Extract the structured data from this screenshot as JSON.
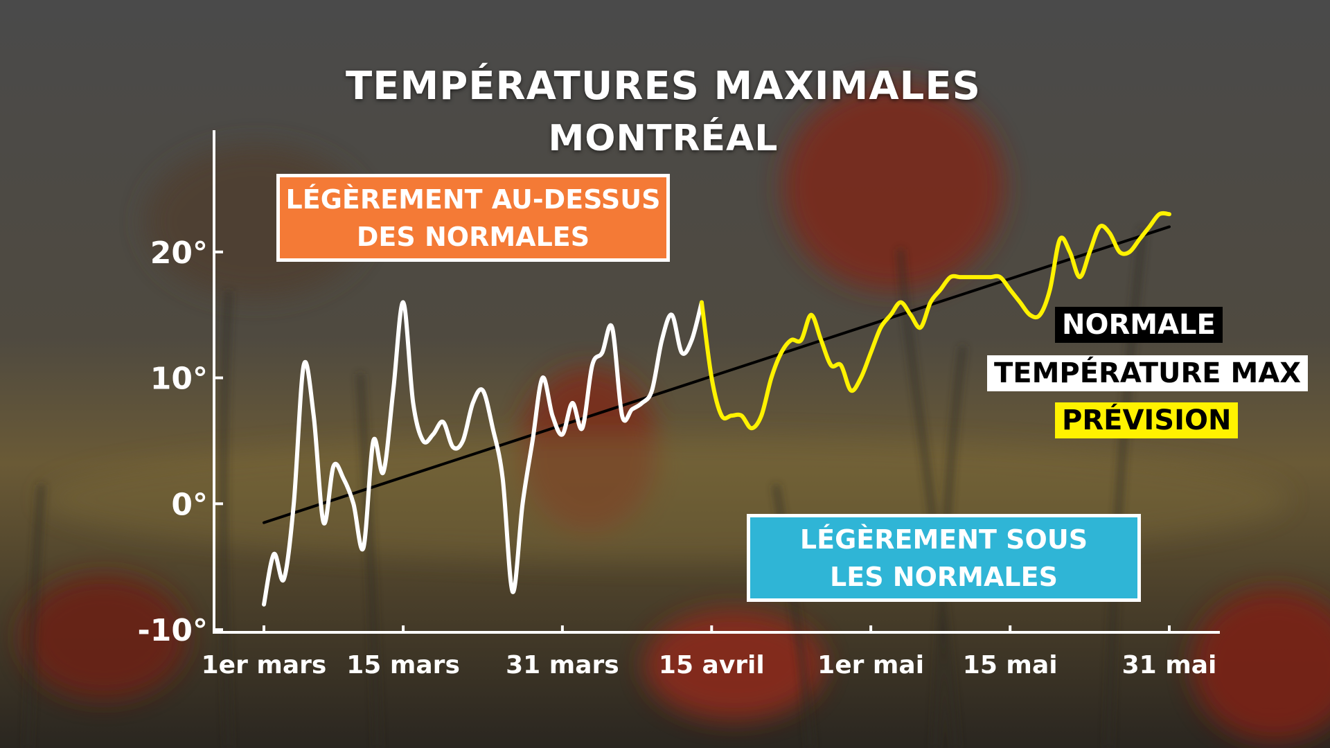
{
  "chart_data": {
    "type": "line",
    "title": "TEMPÉRATURES MAXIMALES",
    "subtitle": "MONTRÉAL",
    "xlim": [
      "2021-03-01",
      "2021-05-31"
    ],
    "ylim": [
      -15,
      30
    ],
    "yticks": [
      20,
      10,
      0,
      -10
    ],
    "ytick_labels": [
      "20°",
      "10°",
      "0°",
      "-10°"
    ],
    "xticks": [
      "2021-03-01",
      "2021-03-15",
      "2021-03-31",
      "2021-04-15",
      "2021-05-01",
      "2021-05-15",
      "2021-05-31"
    ],
    "xtick_labels": [
      "1er mars",
      "15 mars",
      "31 mars",
      "15 avril",
      "1er mai",
      "15 mai",
      "31 mai"
    ],
    "grid": false,
    "legend": "right",
    "series": [
      {
        "name": "NORMALE",
        "color": "#000000",
        "points": [
          [
            "2021-03-01",
            -1.5
          ],
          [
            "2021-05-31",
            22
          ]
        ]
      },
      {
        "name": "TEMPÉRATURE MAX",
        "color": "#ffffff",
        "points": [
          [
            "2021-03-01",
            -8
          ],
          [
            "2021-03-02",
            -4
          ],
          [
            "2021-03-03",
            -6
          ],
          [
            "2021-03-04",
            0
          ],
          [
            "2021-03-05",
            11
          ],
          [
            "2021-03-06",
            7
          ],
          [
            "2021-03-07",
            -1.5
          ],
          [
            "2021-03-08",
            3
          ],
          [
            "2021-03-09",
            2
          ],
          [
            "2021-03-10",
            0
          ],
          [
            "2021-03-11",
            -3.5
          ],
          [
            "2021-03-12",
            5
          ],
          [
            "2021-03-13",
            2.5
          ],
          [
            "2021-03-14",
            9
          ],
          [
            "2021-03-15",
            16
          ],
          [
            "2021-03-16",
            8
          ],
          [
            "2021-03-17",
            5
          ],
          [
            "2021-03-18",
            5.5
          ],
          [
            "2021-03-19",
            6.5
          ],
          [
            "2021-03-20",
            4.5
          ],
          [
            "2021-03-21",
            5
          ],
          [
            "2021-03-22",
            8
          ],
          [
            "2021-03-23",
            9
          ],
          [
            "2021-03-24",
            6
          ],
          [
            "2021-03-25",
            2
          ],
          [
            "2021-03-26",
            -7
          ],
          [
            "2021-03-27",
            0
          ],
          [
            "2021-03-28",
            5
          ],
          [
            "2021-03-29",
            10
          ],
          [
            "2021-03-30",
            7
          ],
          [
            "2021-03-31",
            5.5
          ],
          [
            "2021-04-01",
            8
          ],
          [
            "2021-04-02",
            6
          ],
          [
            "2021-04-03",
            11
          ],
          [
            "2021-04-04",
            12
          ],
          [
            "2021-04-05",
            14
          ],
          [
            "2021-04-06",
            7
          ],
          [
            "2021-04-07",
            7.5
          ],
          [
            "2021-04-08",
            8
          ],
          [
            "2021-04-09",
            9
          ],
          [
            "2021-04-10",
            13
          ],
          [
            "2021-04-11",
            15
          ],
          [
            "2021-04-12",
            12
          ],
          [
            "2021-04-13",
            13
          ],
          [
            "2021-04-14",
            16
          ]
        ]
      },
      {
        "name": "PRÉVISION",
        "color": "#fff200",
        "points": [
          [
            "2021-04-14",
            16
          ],
          [
            "2021-04-15",
            10
          ],
          [
            "2021-04-16",
            7
          ],
          [
            "2021-04-17",
            7
          ],
          [
            "2021-04-18",
            7
          ],
          [
            "2021-04-19",
            6
          ],
          [
            "2021-04-20",
            7
          ],
          [
            "2021-04-21",
            10
          ],
          [
            "2021-04-22",
            12
          ],
          [
            "2021-04-23",
            13
          ],
          [
            "2021-04-24",
            13
          ],
          [
            "2021-04-25",
            15
          ],
          [
            "2021-04-26",
            13
          ],
          [
            "2021-04-27",
            11
          ],
          [
            "2021-04-28",
            11
          ],
          [
            "2021-04-29",
            9
          ],
          [
            "2021-04-30",
            10
          ],
          [
            "2021-05-01",
            12
          ],
          [
            "2021-05-02",
            14
          ],
          [
            "2021-05-03",
            15
          ],
          [
            "2021-05-04",
            16
          ],
          [
            "2021-05-05",
            15
          ],
          [
            "2021-05-06",
            14
          ],
          [
            "2021-05-07",
            16
          ],
          [
            "2021-05-08",
            17
          ],
          [
            "2021-05-09",
            18
          ],
          [
            "2021-05-10",
            18
          ],
          [
            "2021-05-11",
            18
          ],
          [
            "2021-05-12",
            18
          ],
          [
            "2021-05-13",
            18
          ],
          [
            "2021-05-14",
            18
          ],
          [
            "2021-05-15",
            17
          ],
          [
            "2021-05-16",
            16
          ],
          [
            "2021-05-17",
            15
          ],
          [
            "2021-05-18",
            15
          ],
          [
            "2021-05-19",
            17
          ],
          [
            "2021-05-20",
            21
          ],
          [
            "2021-05-21",
            20
          ],
          [
            "2021-05-22",
            18
          ],
          [
            "2021-05-23",
            20
          ],
          [
            "2021-05-24",
            22
          ],
          [
            "2021-05-25",
            21.5
          ],
          [
            "2021-05-26",
            20
          ],
          [
            "2021-05-27",
            20
          ],
          [
            "2021-05-28",
            21
          ],
          [
            "2021-05-29",
            22
          ],
          [
            "2021-05-30",
            23
          ],
          [
            "2021-05-31",
            23
          ]
        ]
      }
    ],
    "annotations": [
      "LÉGÈREMENT AU-DESSUS DES NORMALES",
      "LÉGÈREMENT SOUS LES NORMALES"
    ],
    "annotation_colors": [
      "#f47a36",
      "#2fb5d6"
    ]
  },
  "callouts": {
    "above_line1": "LÉGÈREMENT AU-DESSUS",
    "above_line2": "DES NORMALES",
    "below_line1": "LÉGÈREMENT SOUS",
    "below_line2": "LES NORMALES"
  },
  "legend": {
    "normale": "NORMALE",
    "temperature_max": "TEMPÉRATURE MAX",
    "prevision": "PRÉVISION"
  }
}
